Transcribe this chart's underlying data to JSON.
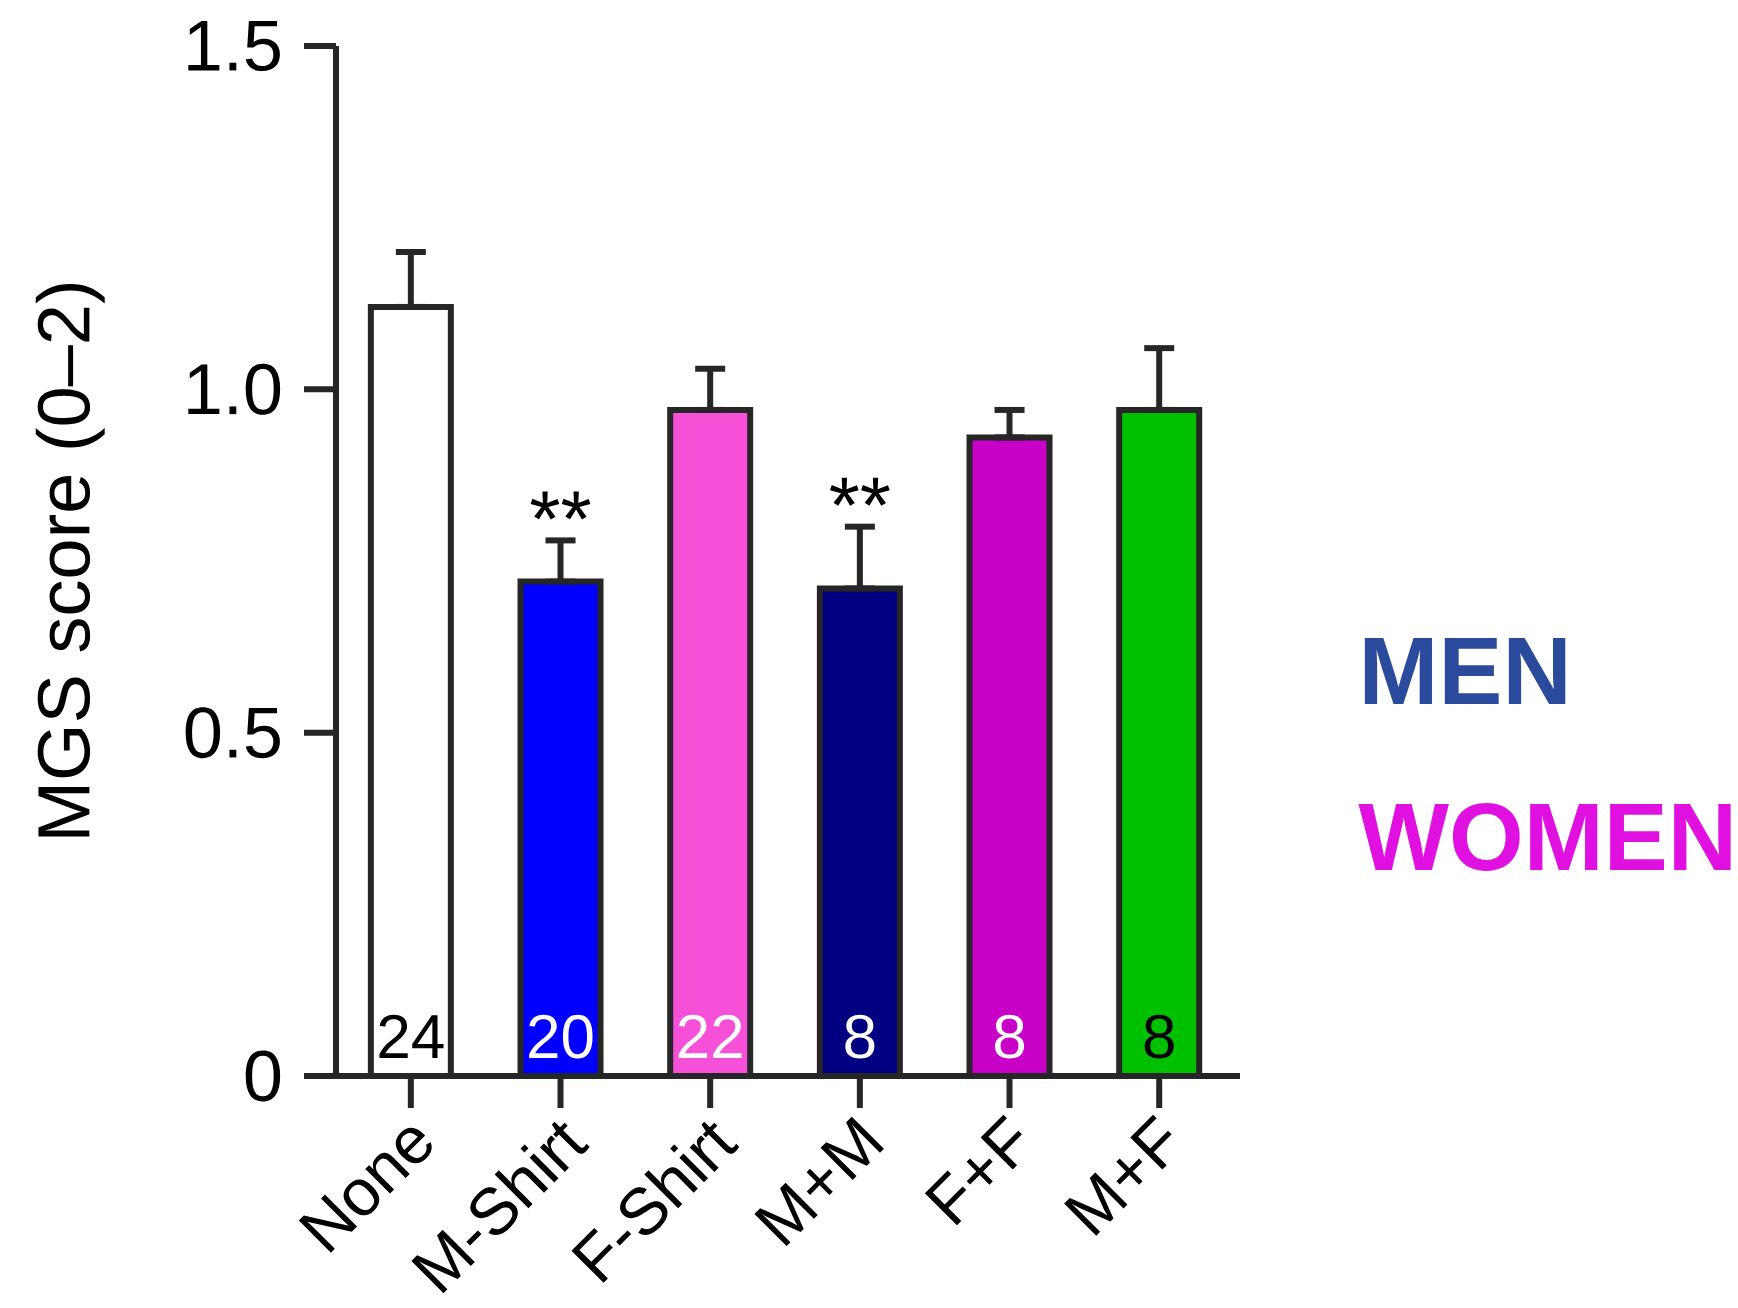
{
  "chart_data": {
    "type": "bar",
    "ylabel": "MGS score (0–2)",
    "categories": [
      "None",
      "M-Shirt",
      "F-Shirt",
      "M+M",
      "F+F",
      "M+F"
    ],
    "values": [
      1.12,
      0.72,
      0.97,
      0.71,
      0.93,
      0.97
    ],
    "colors": [
      "#ffffff",
      "#0000ff",
      "#f64fd8",
      "#000080",
      "#c800c8",
      "#00c000"
    ],
    "errors": [
      [
        1.12,
        1.2
      ],
      [
        0.72,
        0.78
      ],
      [
        0.97,
        1.03
      ],
      [
        0.71,
        0.8
      ],
      [
        0.93,
        0.97
      ],
      [
        0.97,
        1.06
      ]
    ],
    "ylim": [
      0,
      1.5
    ],
    "yticks": [
      0,
      0.5,
      {
        "value": 1,
        "label": "1.0"
      },
      1.5
    ],
    "annotations": [
      {
        "text": "**",
        "x": "M-Shirt",
        "y": 0.72
      },
      {
        "text": "**",
        "x": "M+M",
        "y": 0.71
      },
      {
        "text": "24",
        "x": "None"
      },
      {
        "text": "20",
        "x": "M-Shirt"
      },
      {
        "text": "22",
        "x": "F-Shirt"
      },
      {
        "text": "8",
        "x": "M+M"
      },
      {
        "text": "8",
        "x": "F+F"
      },
      {
        "text": "8",
        "x": "M+F"
      },
      "MEN",
      "WOMEN"
    ]
  }
}
